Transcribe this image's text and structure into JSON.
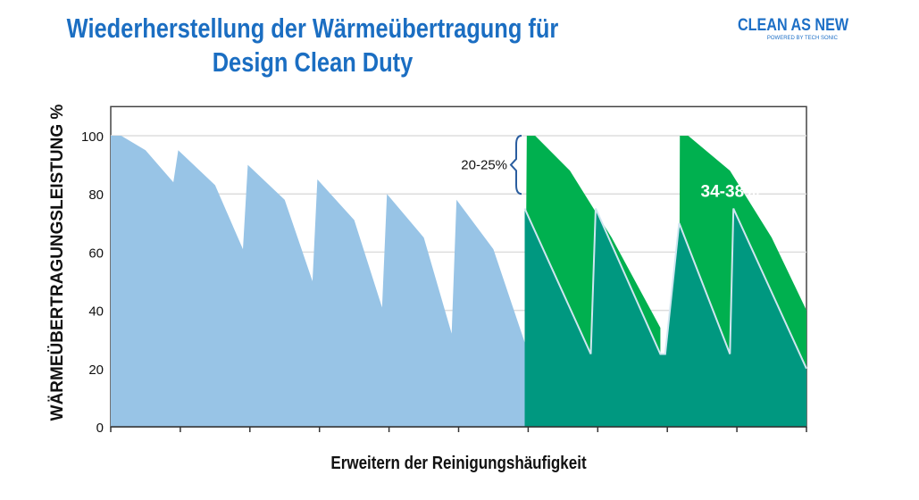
{
  "title_line1": "Wiederherstellung der Wärmeübertragung für",
  "title_line2": "Design Clean Duty",
  "logo": {
    "main": "CLEAN AS NEW",
    "sub": "POWERED BY TECH SONIC"
  },
  "chart_data": {
    "type": "area",
    "title": "Wiederherstellung der Wärmeübertragung für Design Clean Duty",
    "xlabel": "Erweitern der Reinigungshäufigkeit",
    "ylabel": "WÄRMEÜBERTRAGUNGSLEISTUNG %",
    "ylim": [
      0,
      110
    ],
    "xlim": [
      0,
      10
    ],
    "yticks": [
      0,
      20,
      40,
      60,
      80,
      100
    ],
    "xticks": [
      0,
      1,
      2,
      3,
      4,
      5,
      6,
      7,
      8,
      9,
      10
    ],
    "grid": true,
    "colors": {
      "standard": "#98c4e6",
      "new_design": "#00b04f",
      "combined": "#009880"
    },
    "series": [
      {
        "name": "standard",
        "points": [
          [
            0,
            100
          ],
          [
            0.15,
            100
          ],
          [
            0.5,
            95
          ],
          [
            0.9,
            84
          ],
          [
            0.97,
            95
          ],
          [
            1.5,
            83
          ],
          [
            1.9,
            61
          ],
          [
            1.97,
            90
          ],
          [
            2.5,
            78
          ],
          [
            2.9,
            50
          ],
          [
            2.97,
            85
          ],
          [
            3.5,
            71
          ],
          [
            3.9,
            41
          ],
          [
            3.97,
            80
          ],
          [
            4.5,
            65
          ],
          [
            4.9,
            32
          ],
          [
            4.97,
            78
          ],
          [
            5.5,
            61
          ],
          [
            5.95,
            29
          ],
          [
            5.95,
            0
          ]
        ]
      },
      {
        "name": "new_design",
        "points": [
          [
            5.95,
            0
          ],
          [
            5.98,
            100
          ],
          [
            6.1,
            100
          ],
          [
            6.6,
            88
          ],
          [
            7.2,
            65
          ],
          [
            7.9,
            34
          ],
          [
            7.9,
            25
          ],
          [
            8.17,
            25
          ],
          [
            8.18,
            100
          ],
          [
            8.3,
            100
          ],
          [
            8.9,
            88
          ],
          [
            9.5,
            65
          ],
          [
            10,
            40
          ],
          [
            10,
            0
          ]
        ]
      },
      {
        "name": "combined",
        "points": [
          [
            5.95,
            0
          ],
          [
            5.95,
            75
          ],
          [
            6.9,
            25
          ],
          [
            6.97,
            75
          ],
          [
            7.9,
            25
          ],
          [
            7.97,
            25
          ],
          [
            8.17,
            70
          ],
          [
            8.9,
            25
          ],
          [
            8.95,
            75
          ],
          [
            10,
            20
          ],
          [
            10,
            0
          ]
        ]
      }
    ],
    "annotations": [
      {
        "text": "20-25%",
        "x": 5.5,
        "y": 90
      },
      {
        "text": "34-38%",
        "x": 8.9,
        "y": 79
      }
    ]
  }
}
